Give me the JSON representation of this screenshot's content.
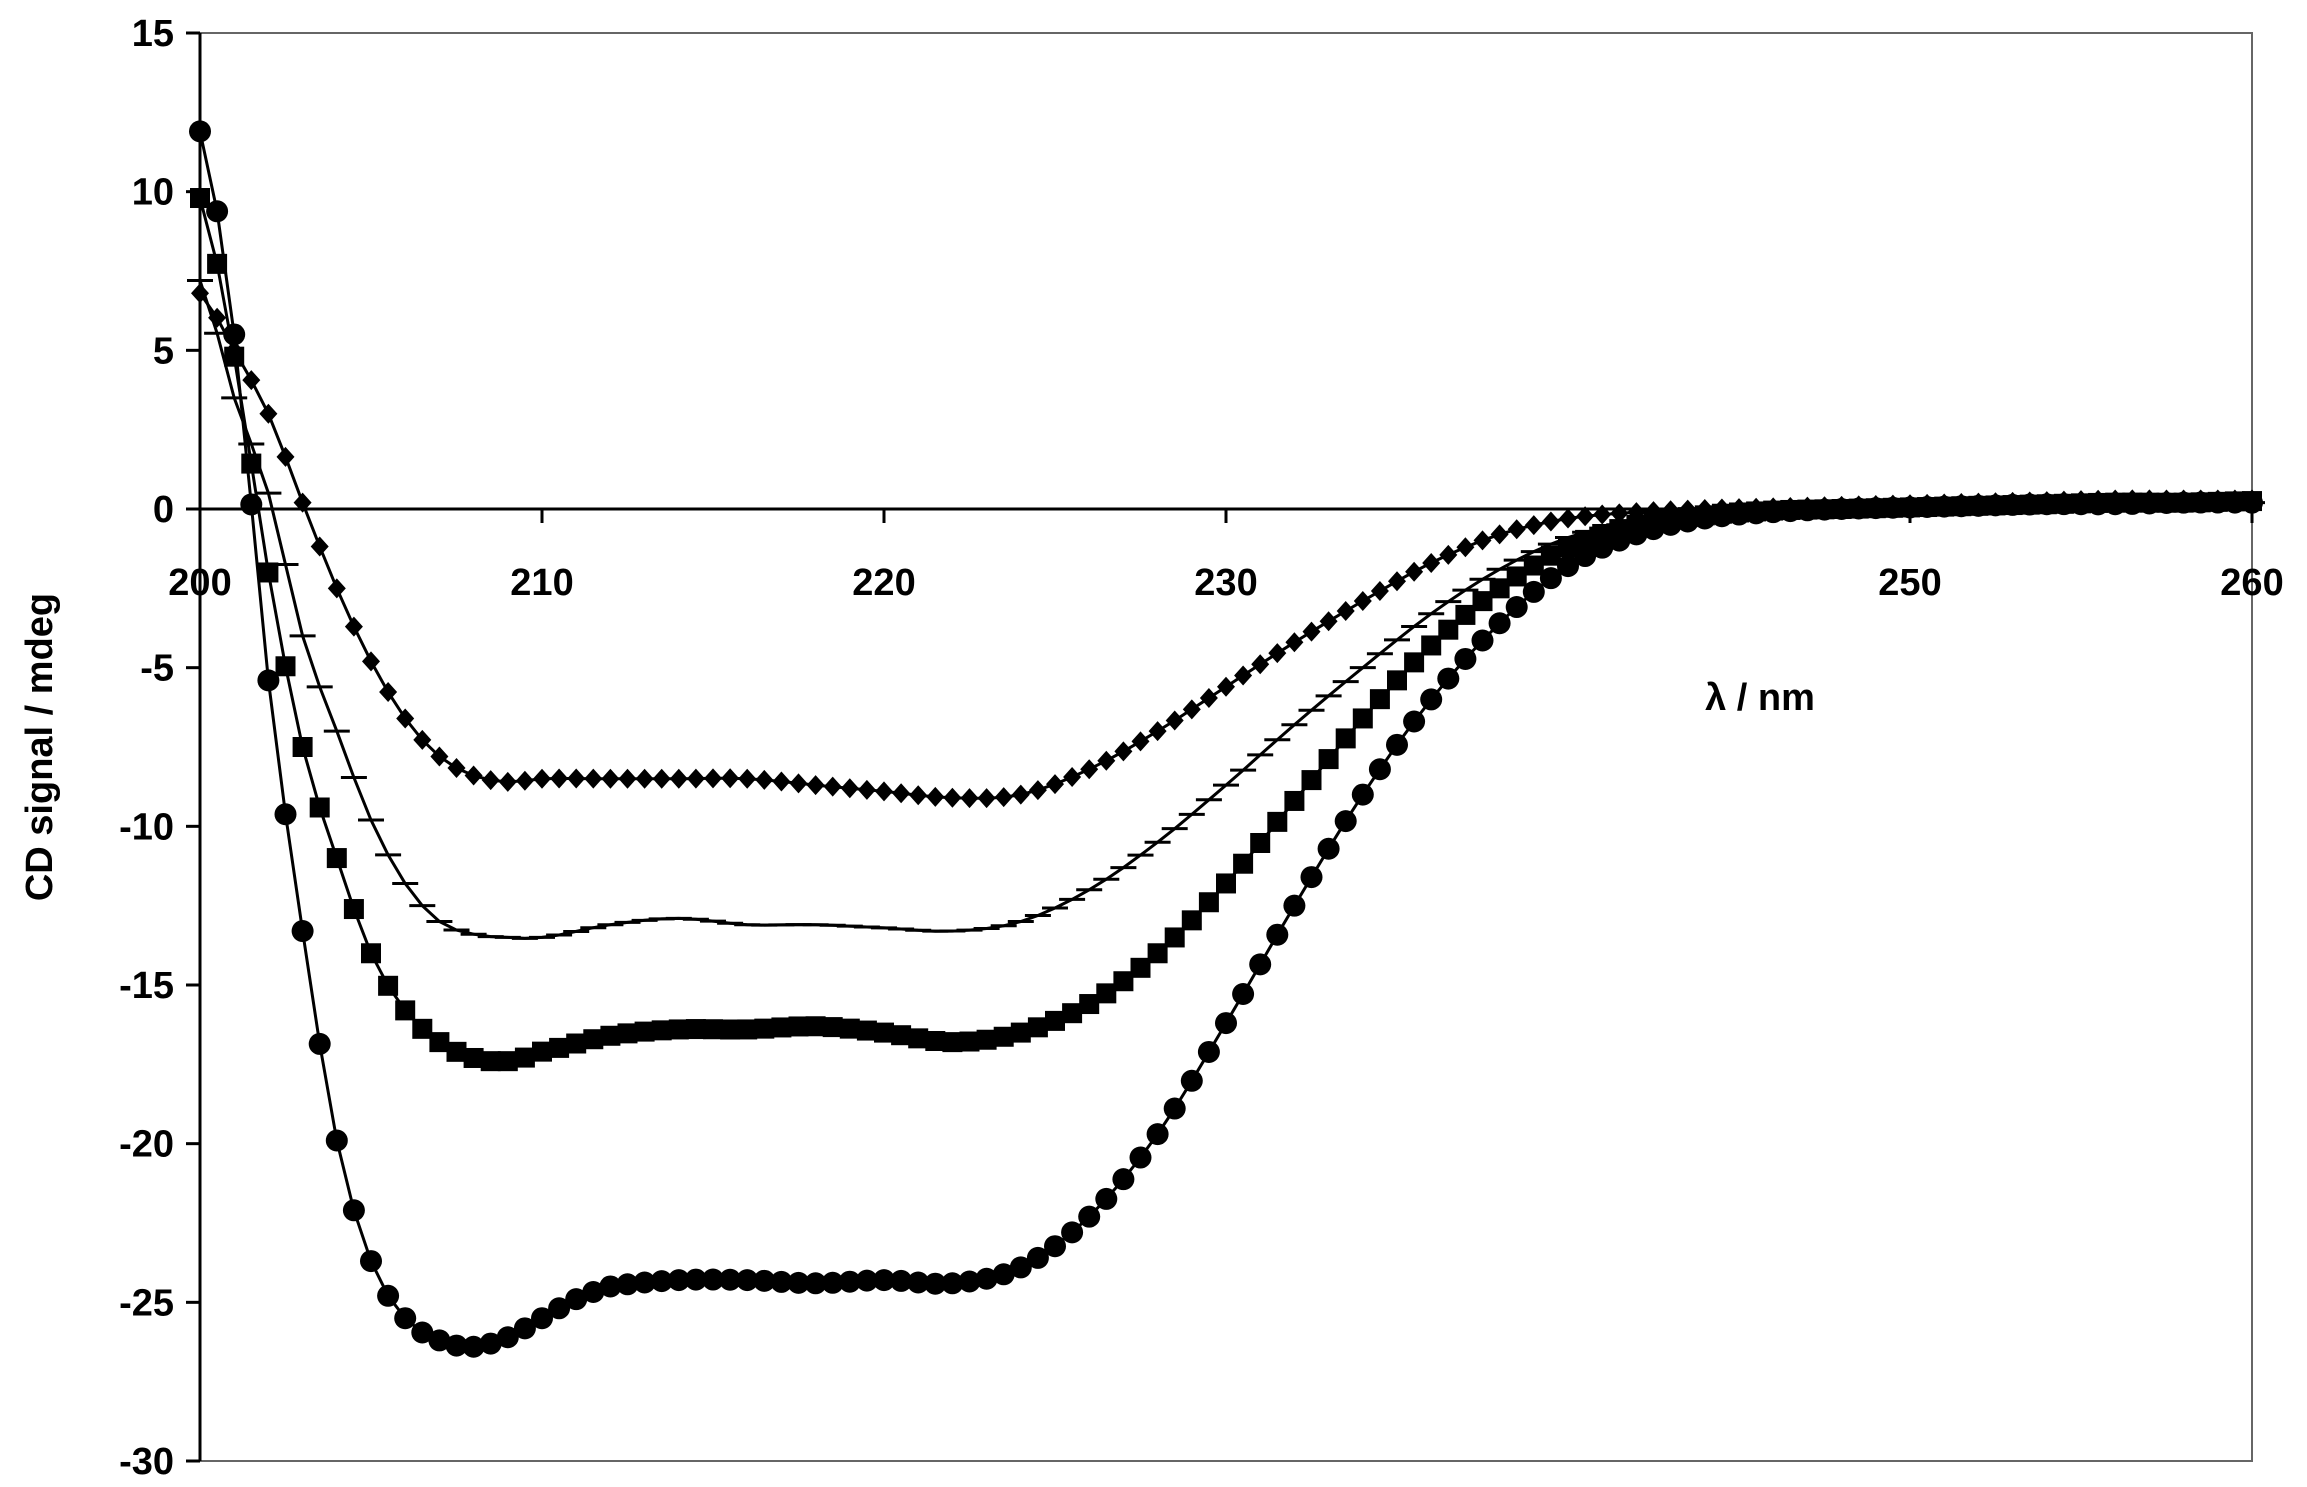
{
  "chart_data": {
    "type": "line",
    "title": "",
    "xlabel": "λ / nm",
    "ylabel": "CD signal / mdeg",
    "xlim": [
      200,
      260
    ],
    "ylim": [
      -30,
      15
    ],
    "x_ticks": [
      200,
      210,
      220,
      230,
      250,
      260
    ],
    "y_ticks": [
      15,
      10,
      5,
      0,
      -5,
      -10,
      -15,
      -20,
      -25,
      -30
    ],
    "grid": false,
    "legend": "none",
    "series": [
      {
        "marker": "diamond",
        "color": "#000000",
        "x": [
          200,
          201,
          202,
          203,
          204,
          205,
          206,
          207,
          208,
          209,
          210,
          212,
          214,
          216,
          218,
          220,
          222,
          224,
          226,
          228,
          230,
          232,
          234,
          236,
          238,
          240,
          242,
          244,
          246,
          248,
          250,
          252,
          254,
          256,
          258,
          260
        ],
        "y": [
          6.8,
          5.0,
          3.0,
          0.2,
          -2.5,
          -4.8,
          -6.6,
          -7.8,
          -8.4,
          -8.6,
          -8.5,
          -8.5,
          -8.5,
          -8.5,
          -8.7,
          -8.9,
          -9.1,
          -9.0,
          -8.2,
          -7.0,
          -5.6,
          -4.2,
          -2.9,
          -1.7,
          -0.8,
          -0.3,
          -0.1,
          0.0,
          0.05,
          0.1,
          0.15,
          0.2,
          0.25,
          0.3,
          0.3,
          0.3
        ]
      },
      {
        "marker": "dash",
        "color": "#000000",
        "x": [
          200,
          201,
          202,
          203,
          204,
          205,
          206,
          207,
          208,
          209,
          210,
          212,
          214,
          216,
          218,
          220,
          222,
          224,
          226,
          228,
          230,
          232,
          234,
          236,
          238,
          240,
          242,
          244,
          246,
          248,
          250,
          252,
          254,
          256,
          258,
          260
        ],
        "y": [
          7.2,
          3.5,
          0.5,
          -4.0,
          -7.0,
          -9.8,
          -11.8,
          -13.0,
          -13.4,
          -13.5,
          -13.5,
          -13.1,
          -12.9,
          -13.1,
          -13.1,
          -13.2,
          -13.3,
          -13.0,
          -12.0,
          -10.5,
          -8.7,
          -6.8,
          -5.0,
          -3.3,
          -1.9,
          -0.9,
          -0.4,
          -0.15,
          -0.05,
          0.0,
          0.05,
          0.1,
          0.15,
          0.2,
          0.2,
          0.2
        ]
      },
      {
        "marker": "square",
        "color": "#000000",
        "x": [
          200,
          201,
          202,
          203,
          204,
          205,
          206,
          207,
          208,
          209,
          210,
          212,
          214,
          216,
          218,
          220,
          222,
          224,
          226,
          228,
          230,
          232,
          234,
          236,
          238,
          240,
          242,
          244,
          246,
          248,
          250,
          252,
          254,
          256,
          258,
          260
        ],
        "y": [
          9.8,
          4.8,
          -2.0,
          -7.5,
          -11.0,
          -14.0,
          -15.8,
          -16.8,
          -17.3,
          -17.4,
          -17.1,
          -16.6,
          -16.4,
          -16.4,
          -16.3,
          -16.5,
          -16.8,
          -16.5,
          -15.6,
          -14.0,
          -11.8,
          -9.2,
          -6.6,
          -4.3,
          -2.5,
          -1.2,
          -0.5,
          -0.2,
          -0.05,
          0.0,
          0.05,
          0.1,
          0.15,
          0.2,
          0.2,
          0.25
        ]
      },
      {
        "marker": "circle",
        "color": "#000000",
        "x": [
          200,
          201,
          202,
          203,
          204,
          205,
          206,
          207,
          208,
          209,
          210,
          211,
          212,
          214,
          216,
          218,
          220,
          222,
          224,
          226,
          228,
          230,
          232,
          234,
          236,
          238,
          240,
          242,
          244,
          246,
          248,
          250,
          252,
          254,
          256,
          258,
          260
        ],
        "y": [
          11.9,
          5.5,
          -5.4,
          -13.3,
          -19.9,
          -23.7,
          -25.5,
          -26.2,
          -26.4,
          -26.1,
          -25.5,
          -24.9,
          -24.5,
          -24.3,
          -24.3,
          -24.4,
          -24.3,
          -24.4,
          -23.9,
          -22.3,
          -19.7,
          -16.2,
          -12.5,
          -9.0,
          -6.0,
          -3.6,
          -1.8,
          -0.8,
          -0.3,
          -0.1,
          0.0,
          0.05,
          0.1,
          0.15,
          0.15,
          0.2,
          0.2
        ]
      }
    ]
  }
}
